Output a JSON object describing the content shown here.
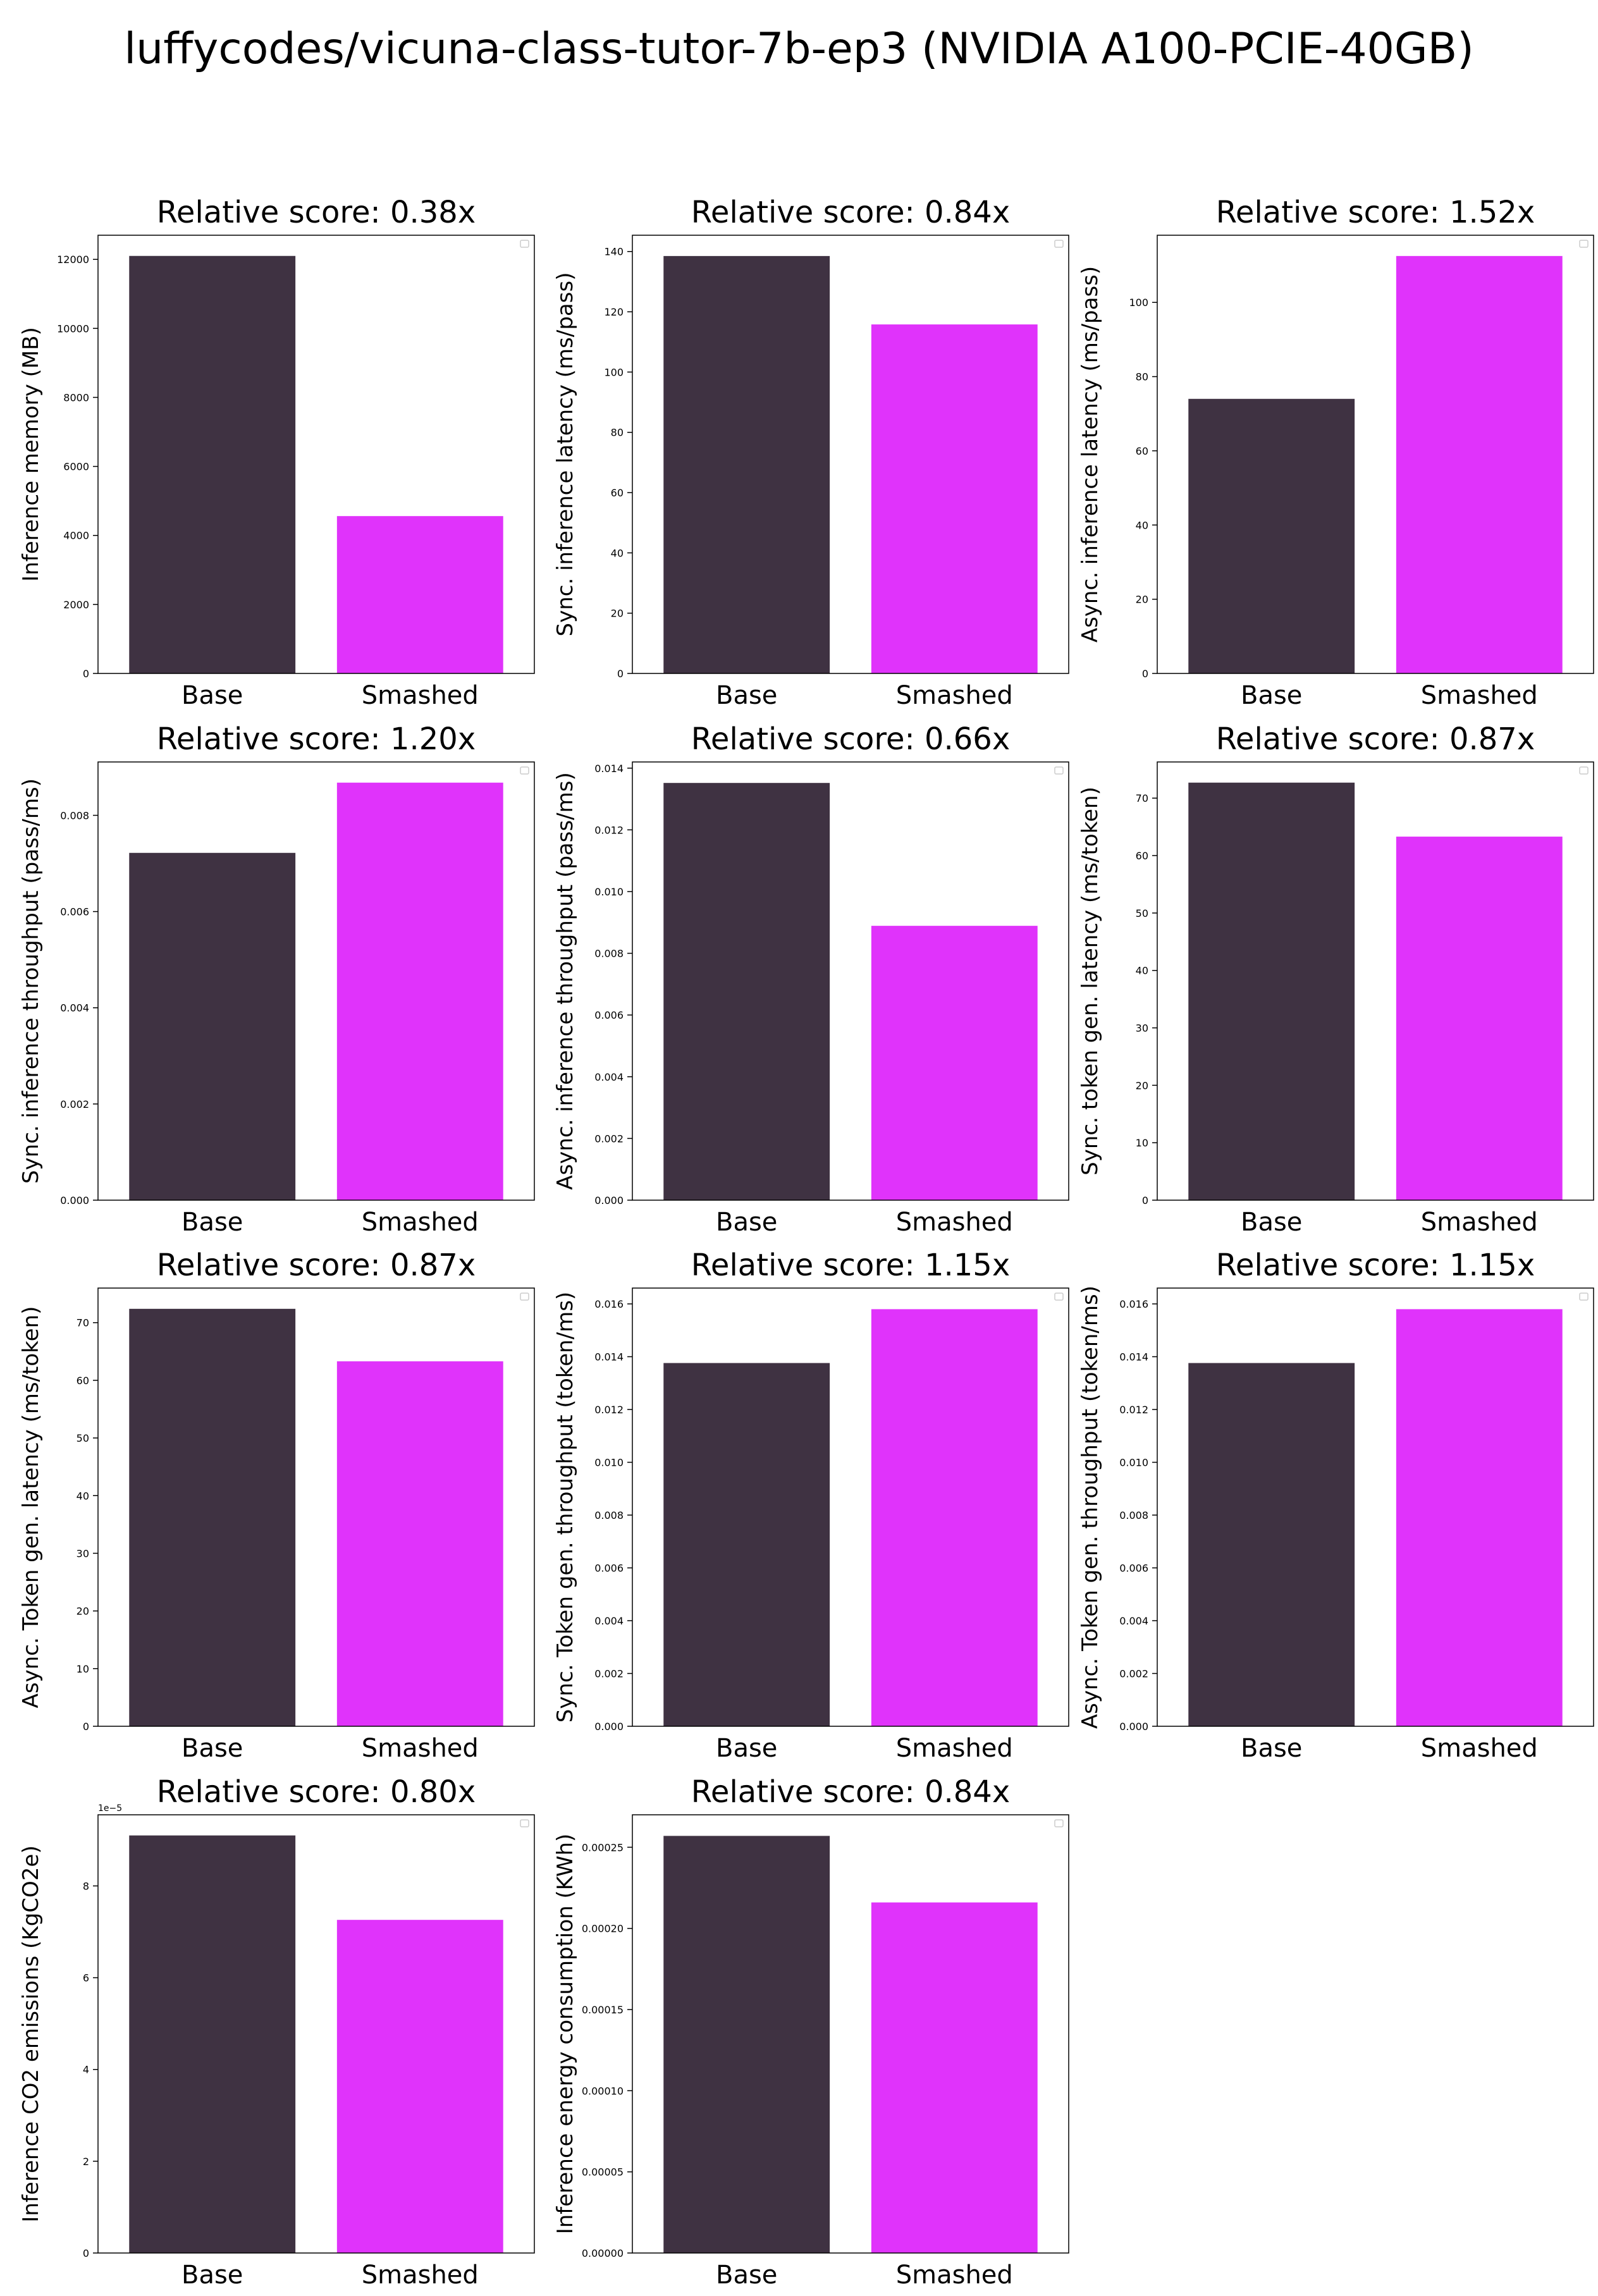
{
  "figure": {
    "title": "luffycodes/vicuna-class-tutor-7b-ep3 (NVIDIA A100-PCIE-40GB)"
  },
  "colors": {
    "base": "#3f3242",
    "smashed": "#e033fb",
    "frame": "#000000"
  },
  "chart_data": [
    {
      "type": "bar",
      "title": "Relative score: 0.38x",
      "ylabel": "Inference memory (MB)",
      "categories": [
        "Base",
        "Smashed"
      ],
      "values": [
        12100,
        4560
      ],
      "ylim": [
        0,
        12700
      ],
      "ticks": [
        0,
        2000,
        4000,
        6000,
        8000,
        10000,
        12000
      ],
      "tick_labels": [
        "0",
        "2000",
        "4000",
        "6000",
        "8000",
        "10000",
        "12000"
      ],
      "legend": "top-right",
      "grid": false
    },
    {
      "type": "bar",
      "title": "Relative score: 0.84x",
      "ylabel": "Sync. inference latency (ms/pass)",
      "categories": [
        "Base",
        "Smashed"
      ],
      "values": [
        138.5,
        115.8
      ],
      "ylim": [
        0,
        145.4
      ],
      "ticks": [
        0,
        20,
        40,
        60,
        80,
        100,
        120,
        140
      ],
      "tick_labels": [
        "0",
        "20",
        "40",
        "60",
        "80",
        "100",
        "120",
        "140"
      ],
      "legend": "top-right",
      "grid": false
    },
    {
      "type": "bar",
      "title": "Relative score: 1.52x",
      "ylabel": "Async. inference latency (ms/pass)",
      "categories": [
        "Base",
        "Smashed"
      ],
      "values": [
        74,
        112.5
      ],
      "ylim": [
        0,
        118.1
      ],
      "ticks": [
        0,
        20,
        40,
        60,
        80,
        100
      ],
      "tick_labels": [
        "0",
        "20",
        "40",
        "60",
        "80",
        "100"
      ],
      "legend": "top-right",
      "grid": false
    },
    {
      "type": "bar",
      "title": "Relative score: 1.20x",
      "ylabel": "Sync. inference throughput (pass/ms)",
      "categories": [
        "Base",
        "Smashed"
      ],
      "values": [
        0.00722,
        0.00868
      ],
      "ylim": [
        0,
        0.00911
      ],
      "ticks": [
        0,
        0.002,
        0.004,
        0.006,
        0.008
      ],
      "tick_labels": [
        "0.000",
        "0.002",
        "0.004",
        "0.006",
        "0.008"
      ],
      "legend": "top-right",
      "grid": false
    },
    {
      "type": "bar",
      "title": "Relative score: 0.66x",
      "ylabel": "Async. inference throughput (pass/ms)",
      "categories": [
        "Base",
        "Smashed"
      ],
      "values": [
        0.01352,
        0.00889
      ],
      "ylim": [
        0,
        0.0142
      ],
      "ticks": [
        0,
        0.002,
        0.004,
        0.006,
        0.008,
        0.01,
        0.012,
        0.014
      ],
      "tick_labels": [
        "0.000",
        "0.002",
        "0.004",
        "0.006",
        "0.008",
        "0.010",
        "0.012",
        "0.014"
      ],
      "legend": "top-right",
      "grid": false
    },
    {
      "type": "bar",
      "title": "Relative score: 0.87x",
      "ylabel": "Sync. token gen. latency (ms/token)",
      "categories": [
        "Base",
        "Smashed"
      ],
      "values": [
        72.7,
        63.3
      ],
      "ylim": [
        0,
        76.3
      ],
      "ticks": [
        0,
        10,
        20,
        30,
        40,
        50,
        60,
        70
      ],
      "tick_labels": [
        "0",
        "10",
        "20",
        "30",
        "40",
        "50",
        "60",
        "70"
      ],
      "legend": "top-right",
      "grid": false
    },
    {
      "type": "bar",
      "title": "Relative score: 0.87x",
      "ylabel": "Async. Token gen. latency (ms/token)",
      "categories": [
        "Base",
        "Smashed"
      ],
      "values": [
        72.4,
        63.3
      ],
      "ylim": [
        0,
        76.0
      ],
      "ticks": [
        0,
        10,
        20,
        30,
        40,
        50,
        60,
        70
      ],
      "tick_labels": [
        "0",
        "10",
        "20",
        "30",
        "40",
        "50",
        "60",
        "70"
      ],
      "legend": "top-right",
      "grid": false
    },
    {
      "type": "bar",
      "title": "Relative score: 1.15x",
      "ylabel": "Sync. Token gen. throughput (token/ms)",
      "categories": [
        "Base",
        "Smashed"
      ],
      "values": [
        0.01376,
        0.0158
      ],
      "ylim": [
        0,
        0.0166
      ],
      "ticks": [
        0,
        0.002,
        0.004,
        0.006,
        0.008,
        0.01,
        0.012,
        0.014,
        0.016
      ],
      "tick_labels": [
        "0.000",
        "0.002",
        "0.004",
        "0.006",
        "0.008",
        "0.010",
        "0.012",
        "0.014",
        "0.016"
      ],
      "legend": "top-right",
      "grid": false
    },
    {
      "type": "bar",
      "title": "Relative score: 1.15x",
      "ylabel": "Async. Token gen. throughput (token/ms)",
      "categories": [
        "Base",
        "Smashed"
      ],
      "values": [
        0.01376,
        0.0158
      ],
      "ylim": [
        0,
        0.0166
      ],
      "ticks": [
        0,
        0.002,
        0.004,
        0.006,
        0.008,
        0.01,
        0.012,
        0.014,
        0.016
      ],
      "tick_labels": [
        "0.000",
        "0.002",
        "0.004",
        "0.006",
        "0.008",
        "0.010",
        "0.012",
        "0.014",
        "0.016"
      ],
      "legend": "top-right",
      "grid": false
    },
    {
      "type": "bar",
      "title": "Relative score: 0.80x",
      "ylabel": "Inference CO2 emissions (KgCO2e)",
      "offset_text": "1e−5",
      "categories": [
        "Base",
        "Smashed"
      ],
      "values": [
        9.1,
        7.26
      ],
      "ylim": [
        0,
        9.55
      ],
      "ticks": [
        0,
        2,
        4,
        6,
        8
      ],
      "tick_labels": [
        "0",
        "2",
        "4",
        "6",
        "8"
      ],
      "legend": "top-right",
      "grid": false
    },
    {
      "type": "bar",
      "title": "Relative score: 0.84x",
      "ylabel": "Inference energy consumption (KWh)",
      "categories": [
        "Base",
        "Smashed"
      ],
      "values": [
        0.000257,
        0.000216
      ],
      "ylim": [
        0,
        0.00027
      ],
      "ticks": [
        0,
        5e-05,
        0.0001,
        0.00015,
        0.0002,
        0.00025
      ],
      "tick_labels": [
        "0.00000",
        "0.00005",
        "0.00010",
        "0.00015",
        "0.00020",
        "0.00025"
      ],
      "legend": "top-right",
      "grid": false
    }
  ]
}
